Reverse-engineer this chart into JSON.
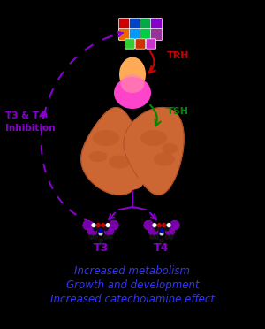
{
  "background_color": "#000000",
  "title_lines": [
    "Increased metabolism",
    "Growth and development",
    "Increased catecholamine effect"
  ],
  "title_color": "#3333ff",
  "title_fontsize": 8.5,
  "label_TRH": "TRH",
  "label_TSH": "TSH",
  "label_T3": "T3",
  "label_T4": "T4",
  "label_inhibition": "T3 & T4\nInhibition",
  "label_color_TRH": "#cc0000",
  "label_color_TSH": "#008800",
  "label_color_T3T4": "#8800cc",
  "label_color_inhibition": "#8800cc",
  "arrow_color_TRH": "#cc0000",
  "arrow_color_TSH": "#008800",
  "arrow_color_inhibition": "#8800cc",
  "arrow_color_feedback": "#8800cc",
  "pituitary_color1": "#ffaa55",
  "pituitary_color2": "#ff44cc",
  "thyroid_color": "#cc6633",
  "thyroid_dark": "#aa4422"
}
